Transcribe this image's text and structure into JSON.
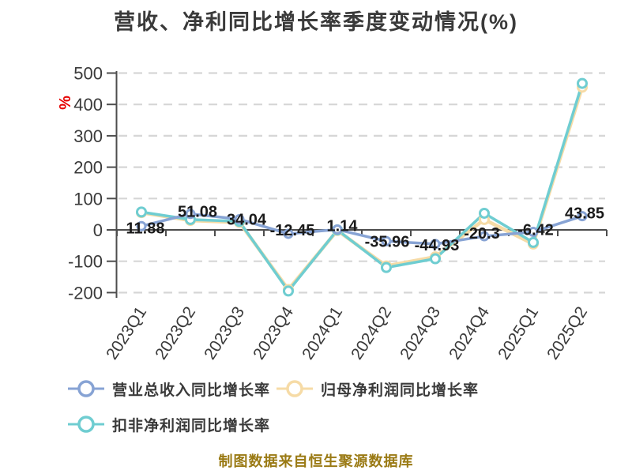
{
  "chart_data": {
    "type": "line",
    "title": "营收、净利同比增长率季度变动情况(%)",
    "ylabel": "%",
    "categories": [
      "2023Q1",
      "2023Q2",
      "2023Q3",
      "2023Q4",
      "2024Q1",
      "2024Q2",
      "2024Q3",
      "2024Q4",
      "2025Q1",
      "2025Q2"
    ],
    "series": [
      {
        "name": "营业总收入同比增长率",
        "color": "#87a3d4",
        "values": [
          11.88,
          51.08,
          34.04,
          -12.45,
          1.14,
          -35.96,
          -44.93,
          -20.3,
          -6.42,
          43.85
        ],
        "show_labels": true
      },
      {
        "name": "归母净利润同比增长率",
        "color": "#f6dba6",
        "values": [
          55,
          30,
          24,
          -190,
          -2,
          -115,
          -86,
          33,
          -45,
          455
        ],
        "show_labels": false
      },
      {
        "name": "扣非净利润同比增长率",
        "color": "#6fcdd1",
        "values": [
          57,
          33,
          27,
          -195,
          0,
          -120,
          -92,
          53,
          -40,
          467
        ],
        "show_labels": false
      }
    ],
    "point_labels": [
      "11.88",
      "51.08",
      "34.04",
      "-12.45",
      "1.14",
      "-35.96",
      "-44.93",
      "-20.3",
      "-6.42",
      "43.85"
    ],
    "ylim": [
      -200,
      500
    ],
    "yticks": [
      500,
      400,
      300,
      200,
      100,
      0,
      -100,
      -200
    ],
    "grid": "horizontal-dashed",
    "legend_position": "bottom-left"
  },
  "footer_note": "制图数据来自恒生聚源数据库",
  "colors": {
    "title": "#3a3a3a",
    "axis": "#4d4d4d",
    "grid": "#d6d6d6",
    "tick_label": "#3a3a3a",
    "point_label": "#1a1a1a",
    "y_unit": "#e60000",
    "footer": "#9a7a14"
  }
}
